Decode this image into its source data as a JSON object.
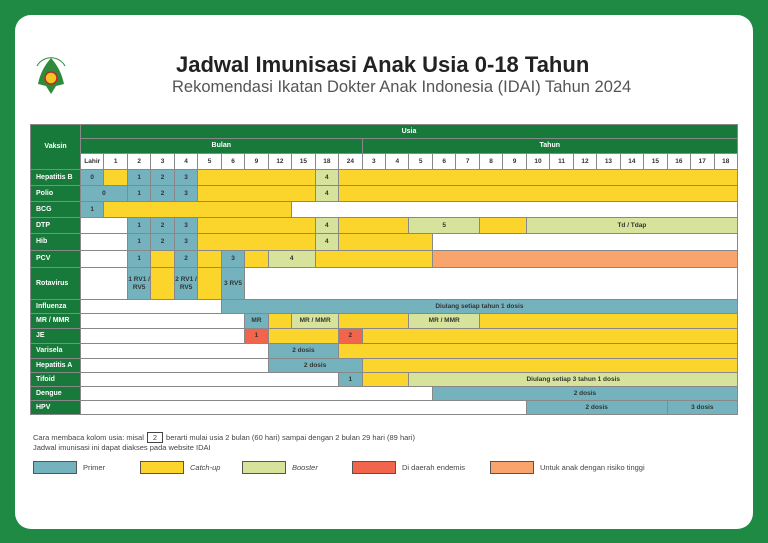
{
  "header": {
    "title": "Jadwal Imunisasi Anak Usia 0-18 Tahun",
    "subtitle": "Rekomendasi Ikatan Dokter Anak Indonesia (IDAI) Tahun 2024",
    "logo_text": "IKATAN DOKTER ANAK INDONESIA"
  },
  "colors": {
    "P": "#74b3be",
    "C": "#fbd52c",
    "B": "#d7e39b",
    "E": "#f0654b",
    "R": "#f8a46c",
    "W": "#ffffff"
  },
  "table": {
    "vaksin_label": "Vaksin",
    "usia_label": "Usia",
    "bulan_label": "Bulan",
    "tahun_label": "Tahun",
    "bulan_cols": [
      "Lahir",
      "1",
      "2",
      "3",
      "4",
      "5",
      "6",
      "9",
      "12",
      "15",
      "18",
      "24"
    ],
    "tahun_cols": [
      "3",
      "4",
      "5",
      "6",
      "7",
      "8",
      "9",
      "10",
      "11",
      "12",
      "13",
      "14",
      "15",
      "16",
      "17",
      "18"
    ],
    "rows": [
      {
        "name": "Hepatitis B",
        "segs": [
          [
            1,
            "P",
            "0"
          ],
          [
            1,
            "C",
            ""
          ],
          [
            1,
            "P",
            "1"
          ],
          [
            1,
            "P",
            "2"
          ],
          [
            1,
            "P",
            "3"
          ],
          [
            5,
            "C",
            ""
          ],
          [
            1,
            "B",
            "4"
          ],
          [
            17,
            "C",
            ""
          ]
        ]
      },
      {
        "name": "Polio",
        "segs": [
          [
            2,
            "P",
            "0"
          ],
          [
            1,
            "P",
            "1"
          ],
          [
            1,
            "P",
            "2"
          ],
          [
            1,
            "P",
            "3"
          ],
          [
            5,
            "C",
            ""
          ],
          [
            1,
            "B",
            "4"
          ],
          [
            17,
            "C",
            ""
          ]
        ]
      },
      {
        "name": "BCG",
        "segs": [
          [
            1,
            "P",
            "1"
          ],
          [
            8,
            "C",
            ""
          ],
          [
            19,
            "W",
            ""
          ]
        ]
      },
      {
        "name": "DTP",
        "segs": [
          [
            2,
            "W",
            ""
          ],
          [
            1,
            "P",
            "1"
          ],
          [
            1,
            "P",
            "2"
          ],
          [
            1,
            "P",
            "3"
          ],
          [
            5,
            "C",
            ""
          ],
          [
            1,
            "B",
            "4"
          ],
          [
            3,
            "C",
            ""
          ],
          [
            3,
            "B",
            "5"
          ],
          [
            2,
            "C",
            ""
          ],
          [
            9,
            "B",
            "Td / Tdap"
          ]
        ]
      },
      {
        "name": "Hib",
        "segs": [
          [
            2,
            "W",
            ""
          ],
          [
            1,
            "P",
            "1"
          ],
          [
            1,
            "P",
            "2"
          ],
          [
            1,
            "P",
            "3"
          ],
          [
            5,
            "C",
            ""
          ],
          [
            1,
            "B",
            "4"
          ],
          [
            4,
            "C",
            ""
          ],
          [
            13,
            "W",
            ""
          ]
        ]
      },
      {
        "name": "PCV",
        "segs": [
          [
            2,
            "W",
            ""
          ],
          [
            1,
            "P",
            "1"
          ],
          [
            1,
            "C",
            ""
          ],
          [
            1,
            "P",
            "2"
          ],
          [
            1,
            "C",
            ""
          ],
          [
            1,
            "P",
            "3"
          ],
          [
            1,
            "C",
            ""
          ],
          [
            2,
            "B",
            "4"
          ],
          [
            5,
            "C",
            ""
          ],
          [
            13,
            "R",
            ""
          ]
        ]
      },
      {
        "name": "Rotavirus",
        "segs": [
          [
            2,
            "W",
            ""
          ],
          [
            1,
            "P",
            "1 RV1 / RV5"
          ],
          [
            1,
            "C",
            ""
          ],
          [
            1,
            "P",
            "2 RV1 / RV5"
          ],
          [
            1,
            "C",
            ""
          ],
          [
            1,
            "P",
            "3 RV5"
          ],
          [
            21,
            "W",
            ""
          ]
        ]
      },
      {
        "name": "Influenza",
        "segs": [
          [
            6,
            "W",
            ""
          ],
          [
            22,
            "P",
            "Diulang setiap tahun 1 dosis"
          ]
        ]
      },
      {
        "name": "MR / MMR",
        "segs": [
          [
            7,
            "W",
            ""
          ],
          [
            1,
            "P",
            "MR"
          ],
          [
            1,
            "C",
            ""
          ],
          [
            2,
            "B",
            "MR / MMR"
          ],
          [
            3,
            "C",
            ""
          ],
          [
            3,
            "B",
            "MR / MMR"
          ],
          [
            11,
            "C",
            ""
          ]
        ]
      },
      {
        "name": "JE",
        "segs": [
          [
            7,
            "W",
            ""
          ],
          [
            1,
            "E",
            "1"
          ],
          [
            3,
            "C",
            ""
          ],
          [
            1,
            "E",
            "2"
          ],
          [
            16,
            "C",
            ""
          ]
        ]
      },
      {
        "name": "Varisela",
        "segs": [
          [
            8,
            "W",
            ""
          ],
          [
            3,
            "P",
            "2 dosis"
          ],
          [
            17,
            "C",
            ""
          ]
        ]
      },
      {
        "name": "Hepatitis A",
        "segs": [
          [
            8,
            "W",
            ""
          ],
          [
            4,
            "P",
            "2 dosis"
          ],
          [
            16,
            "C",
            ""
          ]
        ]
      },
      {
        "name": "Tifoid",
        "segs": [
          [
            11,
            "W",
            ""
          ],
          [
            1,
            "P",
            "1"
          ],
          [
            2,
            "C",
            ""
          ],
          [
            14,
            "B",
            "Diulang setiap 3 tahun 1 dosis"
          ]
        ]
      },
      {
        "name": "Dengue",
        "segs": [
          [
            15,
            "W",
            ""
          ],
          [
            13,
            "P",
            "2 dosis"
          ]
        ]
      },
      {
        "name": "HPV",
        "segs": [
          [
            19,
            "W",
            ""
          ],
          [
            6,
            "P",
            "2 dosis"
          ],
          [
            3,
            "P",
            "3 dosis"
          ]
        ]
      }
    ]
  },
  "notes": {
    "line1_a": "Cara membaca kolom usia: misal",
    "line1_box": "2",
    "line1_b": "berarti mulai usia 2 bulan (60 hari) sampai dengan 2 bulan 29 hari (89 hari)",
    "line2": "Jadwal imunisasi ini dapat diakses pada website IDAI"
  },
  "legend": [
    {
      "label": "Primer",
      "key": "P"
    },
    {
      "label": "Catch-up",
      "key": "C"
    },
    {
      "label": "Booster",
      "key": "B"
    },
    {
      "label": "Di daerah endemis",
      "key": "E"
    },
    {
      "label": "Untuk anak dengan risiko tinggi",
      "key": "R"
    }
  ]
}
